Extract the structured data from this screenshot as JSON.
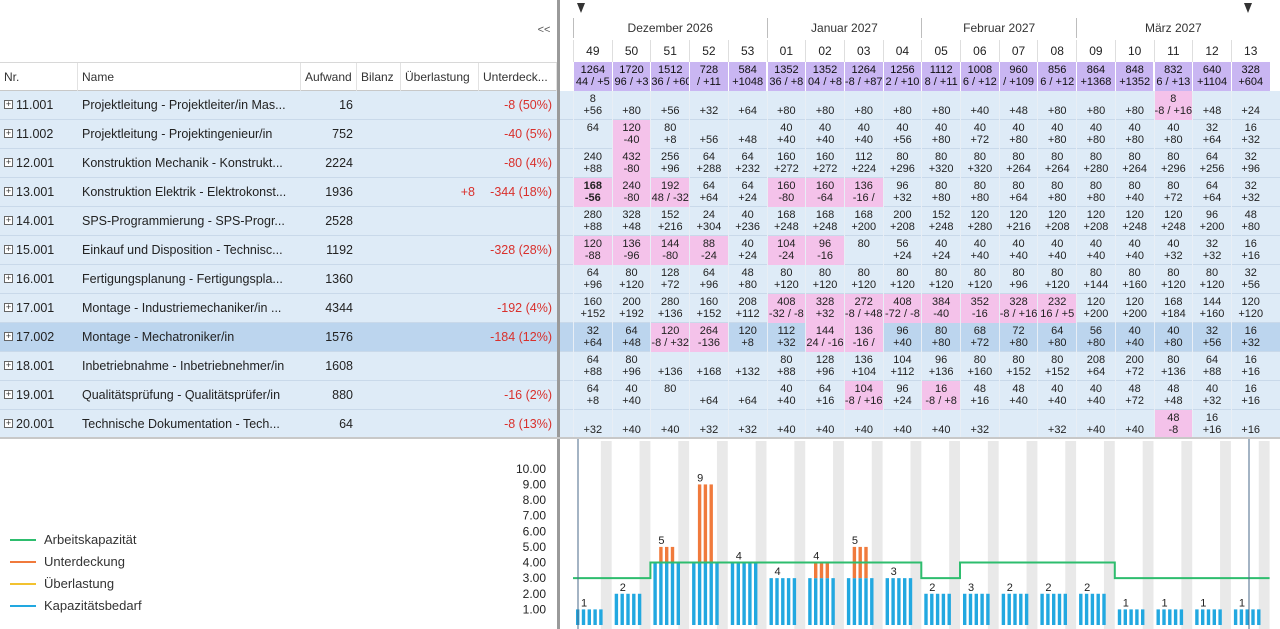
{
  "toolbar": {
    "collapse_label": "<<"
  },
  "columns": {
    "nr": "Nr.",
    "name": "Name",
    "aufwand": "Aufwand",
    "bilanz": "Bilanz",
    "ueberlastung": "Überlastung",
    "unterdeckung": "Unterdeck..."
  },
  "rows": [
    {
      "nr": "11.001",
      "name": "Projektleitung - Projektleiter/in Mas...",
      "aufwand": "16",
      "bilanz": "",
      "ueber": "",
      "unter": "-8 (50%)"
    },
    {
      "nr": "11.002",
      "name": "Projektleitung - Projektingenieur/in",
      "aufwand": "752",
      "bilanz": "",
      "ueber": "",
      "unter": "-40 (5%)"
    },
    {
      "nr": "12.001",
      "name": "Konstruktion Mechanik - Konstrukt...",
      "aufwand": "2224",
      "bilanz": "",
      "ueber": "",
      "unter": "-80 (4%)"
    },
    {
      "nr": "13.001",
      "name": "Konstruktion Elektrik - Elektrokonst...",
      "aufwand": "1936",
      "bilanz": "",
      "ueber": "+8",
      "unter": "-344 (18%)"
    },
    {
      "nr": "14.001",
      "name": "SPS-Programmierung - SPS-Progr...",
      "aufwand": "2528",
      "bilanz": "",
      "ueber": "",
      "unter": ""
    },
    {
      "nr": "15.001",
      "name": "Einkauf und Disposition - Technisc...",
      "aufwand": "1192",
      "bilanz": "",
      "ueber": "",
      "unter": "-328 (28%)"
    },
    {
      "nr": "16.001",
      "name": "Fertigungsplanung - Fertigungspla...",
      "aufwand": "1360",
      "bilanz": "",
      "ueber": "",
      "unter": ""
    },
    {
      "nr": "17.001",
      "name": "Montage - Industriemechaniker/in ...",
      "aufwand": "4344",
      "bilanz": "",
      "ueber": "",
      "unter": "-192 (4%)"
    },
    {
      "nr": "17.002",
      "name": "Montage - Mechatroniker/in",
      "aufwand": "1576",
      "bilanz": "",
      "ueber": "",
      "unter": "-184 (12%)"
    },
    {
      "nr": "18.001",
      "name": "Inbetriebnahme - Inbetriebnehmer/in",
      "aufwand": "1608",
      "bilanz": "",
      "ueber": "",
      "unter": ""
    },
    {
      "nr": "19.001",
      "name": "Qualitätsprüfung - Qualitätsprüfer/in",
      "aufwand": "880",
      "bilanz": "",
      "ueber": "",
      "unter": "-16 (2%)"
    },
    {
      "nr": "20.001",
      "name": "Technische Dokumentation - Tech...",
      "aufwand": "64",
      "bilanz": "",
      "ueber": "",
      "unter": "-8 (13%)"
    }
  ],
  "timeline": {
    "months": [
      "Dezember 2026",
      "Januar 2027",
      "Februar 2027",
      "März 2027"
    ],
    "weeks": [
      "49",
      "50",
      "51",
      "52",
      "53",
      "01",
      "02",
      "03",
      "04",
      "05",
      "06",
      "07",
      "08",
      "09",
      "10",
      "11",
      "12",
      "13"
    ],
    "totals": [
      [
        "1264",
        "44 / +5"
      ],
      [
        "1720",
        "96 / +3"
      ],
      [
        "1512",
        "36 / +60"
      ],
      [
        "728",
        "/ +11"
      ],
      [
        "584",
        "+1048"
      ],
      [
        "1352",
        "36 / +8"
      ],
      [
        "1352",
        "04 / +8"
      ],
      [
        "1264",
        "-8 / +87"
      ],
      [
        "1256",
        "2 / +10"
      ],
      [
        "1112",
        "8 / +11"
      ],
      [
        "1008",
        "6 / +12"
      ],
      [
        "960",
        "/ +109"
      ],
      [
        "856",
        "6 / +12"
      ],
      [
        "864",
        "+1368"
      ],
      [
        "848",
        "+1352"
      ],
      [
        "832",
        "6 / +13"
      ],
      [
        "640",
        "+1104"
      ],
      [
        "328",
        "+604"
      ]
    ],
    "cells": [
      [
        [
          "8",
          "+56"
        ],
        [
          "",
          "+80"
        ],
        [
          "",
          "+56"
        ],
        [
          "",
          "+32"
        ],
        [
          "",
          "+64"
        ],
        [
          "",
          "+80"
        ],
        [
          "",
          "+80"
        ],
        [
          "",
          "+80"
        ],
        [
          "",
          "+80"
        ],
        [
          "",
          "+80"
        ],
        [
          "",
          "+40"
        ],
        [
          "",
          "+48"
        ],
        [
          "",
          "+80"
        ],
        [
          "",
          "+80"
        ],
        [
          "",
          "+80"
        ],
        [
          "8",
          "-8 / +16"
        ],
        [
          "",
          "+48"
        ],
        [
          "",
          "+24"
        ]
      ],
      [
        [
          "64",
          ""
        ],
        [
          "120",
          "-40"
        ],
        [
          "80",
          "+8"
        ],
        [
          "",
          "+56"
        ],
        [
          "",
          "+48"
        ],
        [
          "40",
          "+40"
        ],
        [
          "40",
          "+40"
        ],
        [
          "40",
          "+40"
        ],
        [
          "40",
          "+56"
        ],
        [
          "40",
          "+80"
        ],
        [
          "40",
          "+72"
        ],
        [
          "40",
          "+80"
        ],
        [
          "40",
          "+80"
        ],
        [
          "40",
          "+80"
        ],
        [
          "40",
          "+80"
        ],
        [
          "40",
          "+80"
        ],
        [
          "32",
          "+64"
        ],
        [
          "16",
          "+32"
        ]
      ],
      [
        [
          "240",
          "+88"
        ],
        [
          "432",
          "-80"
        ],
        [
          "256",
          "+96"
        ],
        [
          "64",
          "+288"
        ],
        [
          "64",
          "+232"
        ],
        [
          "160",
          "+272"
        ],
        [
          "160",
          "+272"
        ],
        [
          "112",
          "+224"
        ],
        [
          "80",
          "+296"
        ],
        [
          "80",
          "+320"
        ],
        [
          "80",
          "+320"
        ],
        [
          "80",
          "+264"
        ],
        [
          "80",
          "+264"
        ],
        [
          "80",
          "+280"
        ],
        [
          "80",
          "+264"
        ],
        [
          "80",
          "+296"
        ],
        [
          "64",
          "+256"
        ],
        [
          "32",
          "+96"
        ]
      ],
      [
        [
          "168",
          "-56"
        ],
        [
          "240",
          "-80"
        ],
        [
          "192",
          "48 / -32"
        ],
        [
          "64",
          "+64"
        ],
        [
          "64",
          "+24"
        ],
        [
          "160",
          "-80"
        ],
        [
          "160",
          "-64"
        ],
        [
          "136",
          "-16 /"
        ],
        [
          "96",
          "+32"
        ],
        [
          "80",
          "+80"
        ],
        [
          "80",
          "+80"
        ],
        [
          "80",
          "+64"
        ],
        [
          "80",
          "+80"
        ],
        [
          "80",
          "+80"
        ],
        [
          "80",
          "+40"
        ],
        [
          "80",
          "+72"
        ],
        [
          "64",
          "+64"
        ],
        [
          "32",
          "+32"
        ]
      ],
      [
        [
          "280",
          "+88"
        ],
        [
          "328",
          "+48"
        ],
        [
          "152",
          "+216"
        ],
        [
          "24",
          "+304"
        ],
        [
          "40",
          "+236"
        ],
        [
          "168",
          "+248"
        ],
        [
          "168",
          "+248"
        ],
        [
          "168",
          "+200"
        ],
        [
          "200",
          "+208"
        ],
        [
          "152",
          "+248"
        ],
        [
          "120",
          "+280"
        ],
        [
          "120",
          "+216"
        ],
        [
          "120",
          "+208"
        ],
        [
          "120",
          "+208"
        ],
        [
          "120",
          "+248"
        ],
        [
          "120",
          "+248"
        ],
        [
          "96",
          "+200"
        ],
        [
          "48",
          "+80"
        ]
      ],
      [
        [
          "120",
          "-88"
        ],
        [
          "136",
          "-96"
        ],
        [
          "144",
          "-80"
        ],
        [
          "88",
          "-24"
        ],
        [
          "40",
          "+24"
        ],
        [
          "104",
          "-24"
        ],
        [
          "96",
          "-16"
        ],
        [
          "80",
          ""
        ],
        [
          "56",
          "+24"
        ],
        [
          "40",
          "+24"
        ],
        [
          "40",
          "+40"
        ],
        [
          "40",
          "+40"
        ],
        [
          "40",
          "+40"
        ],
        [
          "40",
          "+40"
        ],
        [
          "40",
          "+40"
        ],
        [
          "40",
          "+32"
        ],
        [
          "32",
          "+32"
        ],
        [
          "16",
          "+16"
        ]
      ],
      [
        [
          "64",
          "+96"
        ],
        [
          "80",
          "+120"
        ],
        [
          "128",
          "+72"
        ],
        [
          "64",
          "+96"
        ],
        [
          "48",
          "+80"
        ],
        [
          "80",
          "+120"
        ],
        [
          "80",
          "+120"
        ],
        [
          "80",
          "+120"
        ],
        [
          "80",
          "+120"
        ],
        [
          "80",
          "+120"
        ],
        [
          "80",
          "+120"
        ],
        [
          "80",
          "+96"
        ],
        [
          "80",
          "+120"
        ],
        [
          "80",
          "+144"
        ],
        [
          "80",
          "+160"
        ],
        [
          "80",
          "+120"
        ],
        [
          "80",
          "+120"
        ],
        [
          "32",
          "+56"
        ]
      ],
      [
        [
          "160",
          "+152"
        ],
        [
          "200",
          "+192"
        ],
        [
          "280",
          "+136"
        ],
        [
          "160",
          "+152"
        ],
        [
          "208",
          "+112"
        ],
        [
          "408",
          "-32 / -8"
        ],
        [
          "328",
          "+32"
        ],
        [
          "272",
          "-8 / +48"
        ],
        [
          "408",
          "-72 / -8"
        ],
        [
          "384",
          "-40"
        ],
        [
          "352",
          "-16"
        ],
        [
          "328",
          "-8 / +16"
        ],
        [
          "232",
          "16 / +5"
        ],
        [
          "120",
          "+200"
        ],
        [
          "120",
          "+200"
        ],
        [
          "168",
          "+184"
        ],
        [
          "144",
          "+160"
        ],
        [
          "120",
          "+120"
        ]
      ],
      [
        [
          "32",
          "+64"
        ],
        [
          "64",
          "+48"
        ],
        [
          "120",
          "-8 / +32"
        ],
        [
          "264",
          "-136"
        ],
        [
          "120",
          "+8"
        ],
        [
          "112",
          "+32"
        ],
        [
          "144",
          "24 / -16"
        ],
        [
          "136",
          "-16 /"
        ],
        [
          "96",
          "+40"
        ],
        [
          "80",
          "+80"
        ],
        [
          "68",
          "+72"
        ],
        [
          "72",
          "+80"
        ],
        [
          "64",
          "+80"
        ],
        [
          "56",
          "+80"
        ],
        [
          "40",
          "+40"
        ],
        [
          "40",
          "+80"
        ],
        [
          "32",
          "+56"
        ],
        [
          "16",
          "+32"
        ]
      ],
      [
        [
          "64",
          "+88"
        ],
        [
          "80",
          "+96"
        ],
        [
          "",
          "+136"
        ],
        [
          "",
          "+168"
        ],
        [
          "",
          "+132"
        ],
        [
          "80",
          "+88"
        ],
        [
          "128",
          "+96"
        ],
        [
          "136",
          "+104"
        ],
        [
          "104",
          "+112"
        ],
        [
          "96",
          "+136"
        ],
        [
          "80",
          "+160"
        ],
        [
          "80",
          "+152"
        ],
        [
          "80",
          "+152"
        ],
        [
          "208",
          "+64"
        ],
        [
          "200",
          "+72"
        ],
        [
          "80",
          "+136"
        ],
        [
          "64",
          "+88"
        ],
        [
          "16",
          "+16"
        ]
      ],
      [
        [
          "64",
          "+8"
        ],
        [
          "40",
          "+40"
        ],
        [
          "80",
          ""
        ],
        [
          "",
          "+64"
        ],
        [
          "",
          "+64"
        ],
        [
          "40",
          "+40"
        ],
        [
          "64",
          "+16"
        ],
        [
          "104",
          "-8 / +16"
        ],
        [
          "96",
          "+24"
        ],
        [
          "16",
          "-8 / +8"
        ],
        [
          "48",
          "+16"
        ],
        [
          "48",
          "+40"
        ],
        [
          "40",
          "+40"
        ],
        [
          "40",
          "+40"
        ],
        [
          "48",
          "+72"
        ],
        [
          "48",
          "+48"
        ],
        [
          "40",
          "+32"
        ],
        [
          "16",
          "+16"
        ]
      ],
      [
        [
          "",
          "+32"
        ],
        [
          "",
          "+40"
        ],
        [
          "",
          "+40"
        ],
        [
          "",
          "+32"
        ],
        [
          "",
          "+32"
        ],
        [
          "",
          "+40"
        ],
        [
          "",
          "+40"
        ],
        [
          "",
          "+40"
        ],
        [
          "",
          "+40"
        ],
        [
          "",
          "+40"
        ],
        [
          "",
          "+32"
        ],
        [
          "",
          ""
        ],
        [
          "",
          "+32"
        ],
        [
          "",
          "+40"
        ],
        [
          "",
          "+40"
        ],
        [
          "48",
          "-8"
        ],
        [
          "16",
          "+16"
        ],
        [
          "",
          "+16"
        ]
      ]
    ],
    "overload": [
      [
        15
      ],
      [
        1
      ],
      [
        1
      ],
      [
        0,
        1,
        2,
        5,
        6,
        7
      ],
      [],
      [
        0,
        1,
        2,
        3,
        5,
        6
      ],
      [],
      [
        5,
        6,
        7,
        8,
        9,
        10,
        11,
        12
      ],
      [
        2,
        3,
        6,
        7
      ],
      [],
      [
        7,
        9
      ],
      [
        15
      ]
    ]
  },
  "legend": {
    "items": [
      {
        "label": "Arbeitskapazität",
        "color": "#2ebd6e"
      },
      {
        "label": "Unterdeckung",
        "color": "#f07a3c"
      },
      {
        "label": "Überlastung",
        "color": "#f2c230"
      },
      {
        "label": "Kapazitätsbedarf",
        "color": "#22a8e0"
      }
    ]
  },
  "chart_data": {
    "type": "bar",
    "y_ticks": [
      "1.00",
      "2.00",
      "3.00",
      "4.00",
      "5.00",
      "6.00",
      "7.00",
      "8.00",
      "9.00",
      "10.00"
    ],
    "ylim": [
      0,
      10.5
    ],
    "x": [
      "49",
      "50",
      "51",
      "52",
      "53",
      "01",
      "02",
      "03",
      "04",
      "05",
      "06",
      "07",
      "08",
      "09",
      "10",
      "11",
      "12",
      "13"
    ],
    "peak_labels": [
      "1",
      "2",
      "5",
      "9",
      "4",
      "4",
      "4",
      "5",
      "3",
      "2",
      "3",
      "2",
      "2",
      "2",
      "1",
      "1",
      "1",
      "1"
    ],
    "series": [
      {
        "name": "Kapazitätsbedarf",
        "values": [
          1,
          2,
          4,
          4,
          4,
          3,
          3,
          3,
          3,
          2,
          2,
          2,
          2,
          2,
          1,
          1,
          1,
          1
        ]
      },
      {
        "name": "Unterdeckung",
        "values": [
          0,
          0,
          5,
          9,
          0,
          0,
          4,
          5,
          0,
          0,
          0,
          0,
          0,
          0,
          0,
          0,
          0,
          0
        ]
      },
      {
        "name": "Arbeitskapazität",
        "values": [
          3,
          3,
          4,
          4,
          4,
          4,
          4,
          4,
          4,
          3,
          4,
          4,
          4,
          4,
          3,
          3,
          3,
          3
        ]
      }
    ]
  }
}
